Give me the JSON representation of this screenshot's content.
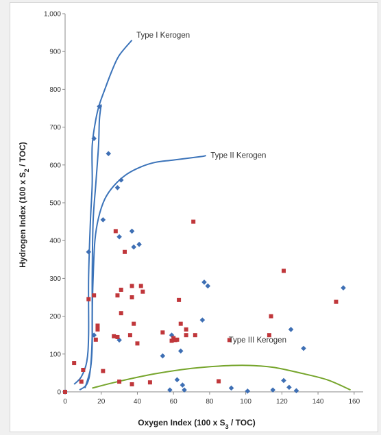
{
  "colors": {
    "curve_blue": "#3b73b9",
    "curve_green": "#76a52c",
    "diamond": "#3e6fb4",
    "square": "#c0373b",
    "axis": "#888888"
  },
  "chart_data": {
    "type": "scatter",
    "title": "",
    "xlabel": "Oxygen Index (100 x S",
    "xlabel_sub": "3",
    "xlabel_tail": " / TOC)",
    "ylabel": "Hydrogen Index (100 x S",
    "ylabel_sub": "2",
    "ylabel_tail": " / TOC)",
    "xlim": [
      0,
      165
    ],
    "ylim": [
      0,
      1000
    ],
    "xticks": [
      0,
      20,
      40,
      60,
      80,
      100,
      120,
      140,
      160
    ],
    "yticks": [
      0,
      100,
      200,
      300,
      400,
      500,
      600,
      700,
      800,
      900,
      1000
    ],
    "ytick_labels": [
      "0",
      "100",
      "200",
      "300",
      "400",
      "500",
      "600",
      "700",
      "800",
      "900",
      "1,000"
    ],
    "grid": false,
    "legend": "none",
    "series": [
      {
        "marker": "diamond",
        "points": [
          [
            16,
            670
          ],
          [
            19,
            755
          ],
          [
            24,
            630
          ],
          [
            31,
            560
          ],
          [
            29,
            540
          ],
          [
            21,
            455
          ],
          [
            37,
            425
          ],
          [
            30,
            410
          ],
          [
            38,
            383
          ],
          [
            41,
            390
          ],
          [
            13,
            370
          ],
          [
            77,
            290
          ],
          [
            79,
            280
          ],
          [
            154,
            275
          ],
          [
            76,
            190
          ],
          [
            125,
            165
          ],
          [
            59,
            150
          ],
          [
            16,
            150
          ],
          [
            54,
            95
          ],
          [
            64,
            108
          ],
          [
            30,
            137
          ],
          [
            132,
            115
          ],
          [
            62,
            32
          ],
          [
            121,
            30
          ],
          [
            65,
            18
          ],
          [
            124,
            12
          ],
          [
            58,
            5
          ],
          [
            66,
            5
          ],
          [
            92,
            10
          ],
          [
            101,
            2
          ],
          [
            115,
            5
          ],
          [
            128,
            3
          ],
          [
            0,
            0
          ]
        ]
      },
      {
        "marker": "square",
        "points": [
          [
            71,
            450
          ],
          [
            121,
            320
          ],
          [
            28,
            425
          ],
          [
            33,
            370
          ],
          [
            13,
            245
          ],
          [
            16,
            255
          ],
          [
            31,
            270
          ],
          [
            29,
            255
          ],
          [
            37,
            280
          ],
          [
            42,
            280
          ],
          [
            37,
            250
          ],
          [
            43,
            265
          ],
          [
            31,
            208
          ],
          [
            18,
            175
          ],
          [
            18,
            165
          ],
          [
            38,
            180
          ],
          [
            54,
            157
          ],
          [
            36,
            150
          ],
          [
            63,
            243
          ],
          [
            64,
            180
          ],
          [
            67,
            150
          ],
          [
            67,
            165
          ],
          [
            72,
            150
          ],
          [
            60,
            142
          ],
          [
            61,
            137
          ],
          [
            59,
            135
          ],
          [
            62,
            138
          ],
          [
            17,
            138
          ],
          [
            27,
            147
          ],
          [
            29,
            145
          ],
          [
            40,
            128
          ],
          [
            114,
            200
          ],
          [
            113,
            150
          ],
          [
            150,
            238
          ],
          [
            91,
            137
          ],
          [
            5,
            76
          ],
          [
            10,
            58
          ],
          [
            21,
            55
          ],
          [
            9,
            27
          ],
          [
            30,
            27
          ],
          [
            47,
            25
          ],
          [
            37,
            20
          ],
          [
            85,
            28
          ],
          [
            0,
            0
          ]
        ]
      }
    ],
    "curves": [
      {
        "label": "Type I Kerogen",
        "points": [
          [
            5,
            20
          ],
          [
            9,
            40
          ],
          [
            12,
            80
          ],
          [
            13,
            150
          ],
          [
            13,
            300
          ],
          [
            14,
            450
          ],
          [
            15,
            550
          ],
          [
            15,
            650
          ],
          [
            17,
            720
          ],
          [
            19,
            760
          ],
          [
            22,
            800
          ],
          [
            26,
            850
          ],
          [
            30,
            890
          ],
          [
            37,
            930
          ]
        ]
      },
      {
        "label": "Type I Kerogen",
        "points": [
          [
            8,
            5
          ],
          [
            12,
            20
          ],
          [
            14,
            60
          ],
          [
            15,
            150
          ],
          [
            15,
            300
          ],
          [
            15.5,
            450
          ],
          [
            17,
            550
          ],
          [
            18.5,
            650
          ],
          [
            19,
            720
          ],
          [
            20,
            760
          ]
        ]
      },
      {
        "label": "Type II Kerogen",
        "points": [
          [
            11,
            10
          ],
          [
            14,
            60
          ],
          [
            15,
            120
          ],
          [
            15,
            200
          ],
          [
            15.5,
            300
          ],
          [
            16.5,
            400
          ],
          [
            18.5,
            460
          ],
          [
            22,
            510
          ],
          [
            27,
            545
          ],
          [
            34,
            575
          ],
          [
            42,
            595
          ],
          [
            50,
            607
          ],
          [
            60,
            613
          ],
          [
            75,
            622
          ],
          [
            78,
            625
          ]
        ]
      },
      {
        "label": "Type III Kerogen",
        "points": [
          [
            15,
            10
          ],
          [
            30,
            28
          ],
          [
            50,
            48
          ],
          [
            70,
            62
          ],
          [
            85,
            68
          ],
          [
            100,
            70
          ],
          [
            115,
            65
          ],
          [
            130,
            50
          ],
          [
            145,
            32
          ],
          [
            158,
            5
          ]
        ]
      }
    ],
    "annotations": [
      {
        "text": "Type I Kerogen",
        "x": 39.5,
        "y": 944
      },
      {
        "text": "Type II Kerogen",
        "x": 80.5,
        "y": 626
      },
      {
        "text": "Type III Kerogen",
        "x": 90.5,
        "y": 138
      }
    ]
  }
}
